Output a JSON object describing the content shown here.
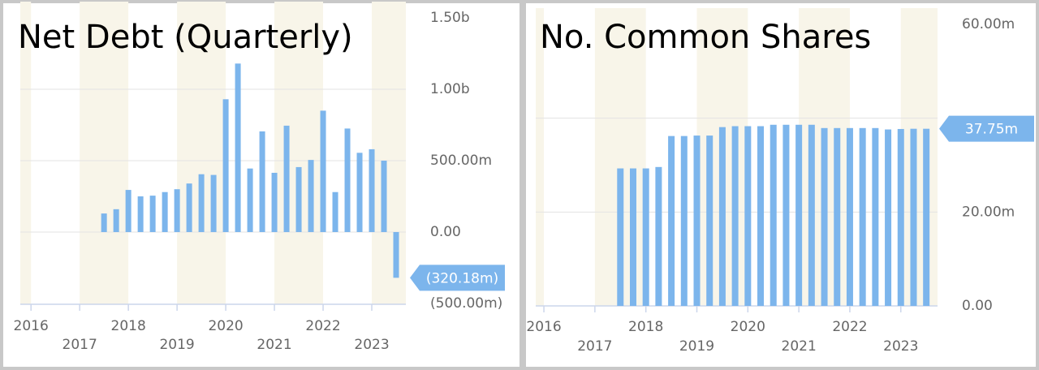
{
  "chart_data": [
    {
      "type": "bar",
      "title": "Net Debt (Quarterly)",
      "color": "#7cb5ec",
      "grid": true,
      "x": [
        2017.5,
        2017.75,
        2018,
        2018.25,
        2018.5,
        2018.75,
        2019,
        2019.25,
        2019.5,
        2019.75,
        2020,
        2020.25,
        2020.5,
        2020.75,
        2021,
        2021.25,
        2021.5,
        2021.75,
        2022,
        2022.25,
        2022.5,
        2022.75,
        2023,
        2023.25,
        2023.5
      ],
      "values": [
        130000000,
        160000000,
        295000000,
        250000000,
        255000000,
        280000000,
        300000000,
        340000000,
        405000000,
        400000000,
        930000000,
        1180000000,
        445000000,
        705000000,
        415000000,
        745000000,
        455000000,
        505000000,
        850000000,
        280000000,
        725000000,
        555000000,
        580000000,
        500000000,
        -320180000
      ],
      "value_labels": [
        null,
        null,
        null,
        null,
        null,
        null,
        null,
        null,
        null,
        null,
        null,
        null,
        null,
        null,
        null,
        null,
        null,
        null,
        null,
        null,
        null,
        null,
        null,
        null,
        "(320.18m)"
      ],
      "xlim": [
        2015.78,
        2023.7
      ],
      "xticks": [
        2016,
        2017,
        2018,
        2019,
        2020,
        2021,
        2022,
        2023
      ],
      "ylim": [
        -500000000,
        1500000000
      ],
      "yticks": [
        {
          "value": -500000000,
          "label": "(500.00m)"
        },
        {
          "value": 0,
          "label": "0.00"
        },
        {
          "value": 500000000,
          "label": "500.00m"
        },
        {
          "value": 1000000000,
          "label": "1.00b"
        },
        {
          "value": 1500000000,
          "label": "1.50b"
        }
      ]
    },
    {
      "type": "bar",
      "title": "No. Common Shares",
      "color": "#7cb5ec",
      "grid": true,
      "x": [
        2017.5,
        2017.75,
        2018,
        2018.25,
        2018.5,
        2018.75,
        2019,
        2019.25,
        2019.5,
        2019.75,
        2020,
        2020.25,
        2020.5,
        2020.75,
        2021,
        2021.25,
        2021.5,
        2021.75,
        2022,
        2022.25,
        2022.5,
        2022.75,
        2023,
        2023.25,
        2023.5
      ],
      "values": [
        29300000,
        29300000,
        29300000,
        29600000,
        36200000,
        36200000,
        36300000,
        36300000,
        38100000,
        38300000,
        38300000,
        38300000,
        38600000,
        38600000,
        38600000,
        38600000,
        37900000,
        37900000,
        37900000,
        37900000,
        37900000,
        37600000,
        37700000,
        37750000,
        37750000
      ],
      "value_labels": [
        null,
        null,
        null,
        null,
        null,
        null,
        null,
        null,
        null,
        null,
        null,
        null,
        null,
        null,
        null,
        null,
        null,
        null,
        null,
        null,
        null,
        null,
        null,
        null,
        "37.75m"
      ],
      "xlim": [
        2015.84,
        2023.72
      ],
      "xticks": [
        2016,
        2017,
        2018,
        2019,
        2020,
        2021,
        2022,
        2023
      ],
      "ylim": [
        0,
        60000000
      ],
      "yticks": [
        {
          "value": 0,
          "label": "0.00"
        },
        {
          "value": 20000000,
          "label": "20.00m"
        },
        {
          "value": 40000000,
          "label": null
        },
        {
          "value": 60000000,
          "label": "60.00m"
        }
      ]
    }
  ]
}
